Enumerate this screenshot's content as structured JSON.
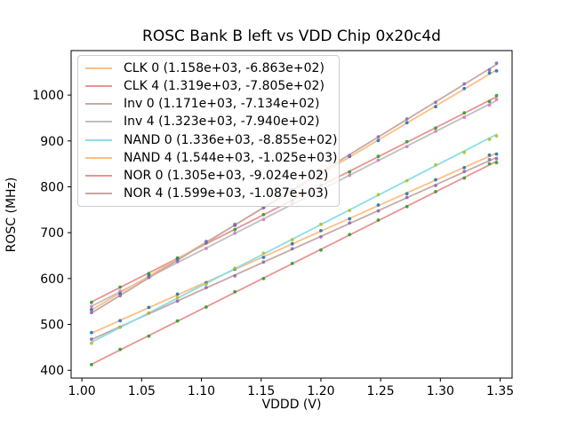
{
  "chart_data": {
    "type": "scatter",
    "title": "ROSC Bank B left vs VDD Chip 0x20c4d",
    "xlabel": "VDDD (V)",
    "ylabel": "ROSC (MHz)",
    "xlim": [
      0.991,
      1.36
    ],
    "ylim": [
      383,
      1097
    ],
    "xtick_labels": [
      "1.00",
      "1.05",
      "1.10",
      "1.15",
      "1.20",
      "1.25",
      "1.30",
      "1.35"
    ],
    "ytick_labels": [
      "400",
      "500",
      "600",
      "700",
      "800",
      "900",
      "1000"
    ],
    "grid": false,
    "legend_position": "upper-left",
    "x": [
      1.008,
      1.032,
      1.056,
      1.08,
      1.104,
      1.128,
      1.152,
      1.176,
      1.2,
      1.224,
      1.248,
      1.272,
      1.296,
      1.32,
      1.341,
      1.347
    ],
    "fit_note": "legend shows (slope, intercept) of linear fit ROSC = slope*VDDD + intercept",
    "series": [
      {
        "name": "CLK 0",
        "legend_label": "CLK 0 (1.158e+03, -6.863e+02)",
        "slope": 1158.0,
        "intercept": -686.3,
        "line_color": "#fdbf86",
        "dot_color": "#1f77b4",
        "residuals": [
          1.2,
          -0.8,
          0.5,
          1.8,
          -1.2,
          0.6,
          -1.5,
          0.3,
          1.1,
          -0.7,
          1.4,
          -1.8,
          0.9,
          -0.4,
          2.6,
          -2.2
        ]
      },
      {
        "name": "CLK 4",
        "legend_label": "CLK 4 (1.319e+03, -7.805e+02)",
        "slope": 1319.0,
        "intercept": -780.5,
        "line_color": "#ea9394",
        "dot_color": "#2ca02c",
        "residuals": [
          -1.0,
          0.7,
          -1.4,
          0.9,
          1.6,
          -0.6,
          0.4,
          -1.2,
          1.0,
          -1.6,
          0.8,
          1.3,
          -0.9,
          0.5,
          -2.4,
          2.8
        ]
      },
      {
        "name": "Inv 0",
        "legend_label": "Inv 0 (1.171e+03, -7.134e+02)",
        "slope": 1171.0,
        "intercept": -713.4,
        "line_color": "#c5aaa5",
        "dot_color": "#9467bd",
        "residuals": [
          0.8,
          -1.1,
          1.5,
          -0.6,
          0.9,
          -1.8,
          0.4,
          1.2,
          -0.9,
          1.6,
          -0.5,
          0.7,
          -1.3,
          1.0,
          2.2,
          -2.6
        ]
      },
      {
        "name": "Inv 4",
        "legend_label": "Inv 4 (1.323e+03, -7.940e+02)",
        "slope": 1323.0,
        "intercept": -794.0,
        "line_color": "#bfbfbf",
        "dot_color": "#e377c2",
        "residuals": [
          -0.6,
          1.3,
          -0.9,
          1.7,
          -1.1,
          0.5,
          -1.6,
          0.8,
          1.4,
          -0.4,
          0.9,
          -1.2,
          0.6,
          -0.8,
          -2.0,
          2.4
        ]
      },
      {
        "name": "NAND 0",
        "legend_label": "NAND 0 (1.336e+03, -8.855e+02)",
        "slope": 1336.0,
        "intercept": -885.5,
        "line_color": "#8bdee7",
        "dot_color": "#bcbd22",
        "residuals": [
          -2.2,
          1.0,
          -0.7,
          1.2,
          -1.5,
          0.8,
          1.6,
          -0.9,
          0.5,
          -1.3,
          1.1,
          -0.6,
          1.8,
          -3.0,
          -2.6,
          -3.4
        ]
      },
      {
        "name": "NAND 4",
        "legend_label": "NAND 4 (1.544e+03, -1.025e+03)",
        "slope": 1544.0,
        "intercept": -1025.0,
        "line_color": "#fdbf86",
        "dot_color": "#1f77b4",
        "residuals": [
          0.9,
          -1.4,
          0.6,
          -0.8,
          1.3,
          -0.5,
          1.0,
          -1.7,
          0.4,
          1.5,
          -1.0,
          0.8,
          -1.4,
          1.2,
          2.8,
          -2.0
        ]
      },
      {
        "name": "NOR 0",
        "legend_label": "NOR 0 (1.305e+03, -9.024e+02)",
        "slope": 1305.0,
        "intercept": -902.4,
        "line_color": "#ea9394",
        "dot_color": "#2ca02c",
        "residuals": [
          -0.9,
          1.1,
          -1.3,
          0.7,
          -0.5,
          1.4,
          -1.0,
          0.6,
          -1.5,
          0.9,
          1.2,
          -0.7,
          0.5,
          -1.1,
          2.4,
          -2.6
        ]
      },
      {
        "name": "NOR 4",
        "legend_label": "NOR 4 (1.599e+03, -1.087e+03)",
        "slope": 1599.0,
        "intercept": -1087.0,
        "line_color": "#c5aaa5",
        "dot_color": "#9467bd",
        "residuals": [
          1.1,
          -0.6,
          0.9,
          -1.3,
          0.7,
          1.5,
          -0.8,
          1.2,
          -0.4,
          -1.6,
          0.6,
          1.0,
          -1.2,
          0.8,
          -2.2,
          2.6
        ]
      }
    ],
    "axis_color": "#000000"
  }
}
